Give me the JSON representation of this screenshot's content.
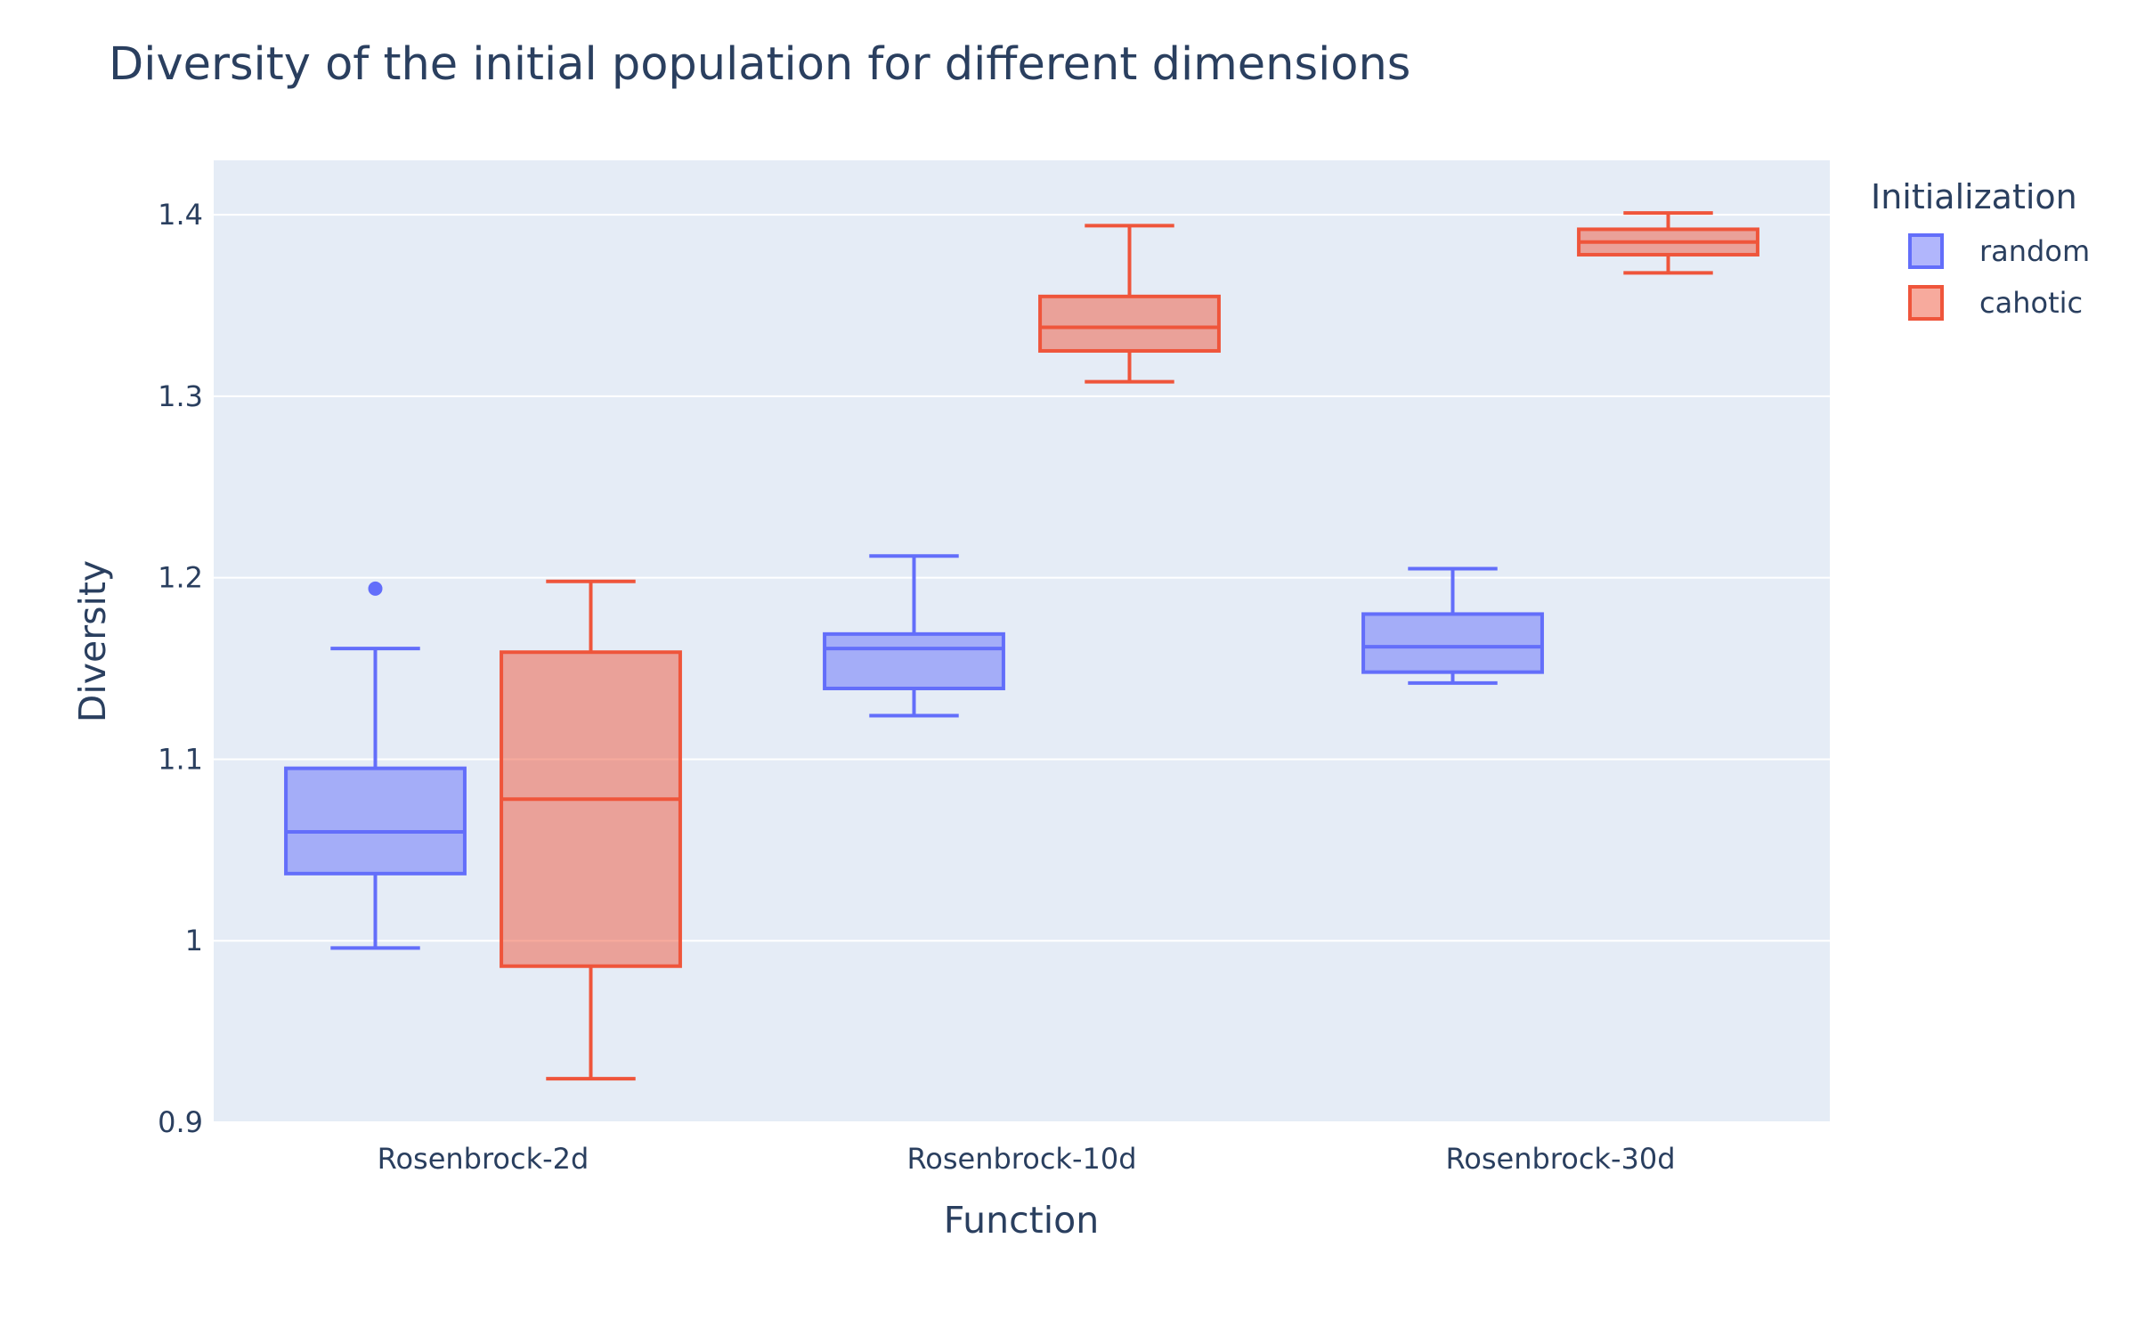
{
  "chart_data": {
    "type": "box",
    "title": "Diversity of the initial population for different dimensions",
    "xlabel": "Function",
    "ylabel": "Diversity",
    "categories": [
      "Rosenbrock-2d",
      "Rosenbrock-10d",
      "Rosenbrock-30d"
    ],
    "ylim": [
      0.9,
      1.43
    ],
    "yticks": [
      0.9,
      1,
      1.1,
      1.2,
      1.3,
      1.4
    ],
    "ytick_labels": [
      "0.9",
      "1",
      "1.1",
      "1.2",
      "1.3",
      "1.4"
    ],
    "grid": true,
    "legend": {
      "title": "Initialization",
      "placement": "top-right"
    },
    "series": [
      {
        "name": "random",
        "color": "#636efa",
        "fill": "rgba(99,110,250,0.5)",
        "boxes": [
          {
            "min": 0.996,
            "q1": 1.037,
            "median": 1.06,
            "q3": 1.095,
            "max": 1.161,
            "outliers": [
              1.194
            ]
          },
          {
            "min": 1.124,
            "q1": 1.139,
            "median": 1.161,
            "q3": 1.169,
            "max": 1.212,
            "outliers": []
          },
          {
            "min": 1.142,
            "q1": 1.148,
            "median": 1.162,
            "q3": 1.18,
            "max": 1.205,
            "outliers": []
          }
        ]
      },
      {
        "name": "cahotic",
        "color": "#ef553b",
        "fill": "rgba(239,85,59,0.5)",
        "boxes": [
          {
            "min": 0.924,
            "q1": 0.986,
            "median": 1.078,
            "q3": 1.159,
            "max": 1.198,
            "outliers": []
          },
          {
            "min": 1.308,
            "q1": 1.325,
            "median": 1.338,
            "q3": 1.355,
            "max": 1.394,
            "outliers": []
          },
          {
            "min": 1.368,
            "q1": 1.378,
            "median": 1.385,
            "q3": 1.392,
            "max": 1.401,
            "outliers": []
          }
        ]
      }
    ]
  }
}
